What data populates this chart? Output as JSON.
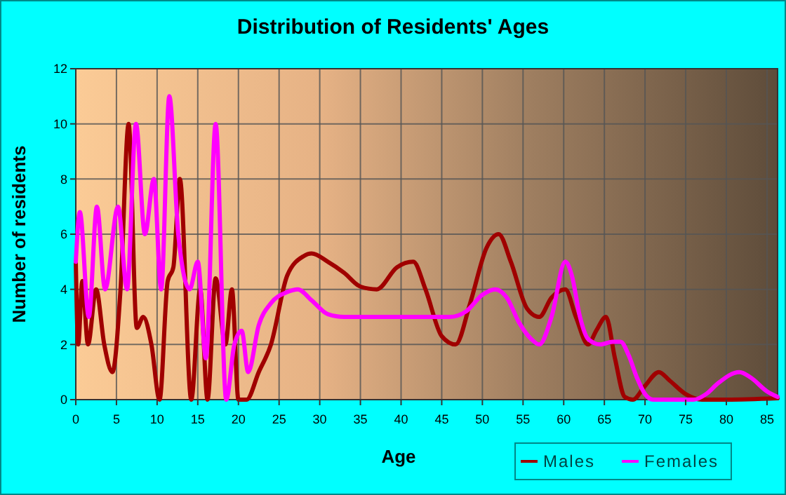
{
  "chart_data": {
    "type": "line",
    "title": "Distribution of Residents' Ages",
    "xlabel": "Age",
    "ylabel": "Number of residents",
    "xlim": [
      0,
      86.3
    ],
    "xticks": [
      0,
      5,
      10,
      15,
      20,
      25,
      30,
      35,
      40,
      45,
      50,
      55,
      60,
      65,
      70,
      75,
      80,
      85
    ],
    "ylim": [
      0,
      12
    ],
    "yticks": [
      0,
      2,
      4,
      6,
      8,
      10,
      12
    ],
    "grid": true,
    "legend": "bottom right",
    "marker": "none",
    "line_style": "solid",
    "series": [
      {
        "name": "Males",
        "color": "#a00000",
        "x": [
          0,
          0.3,
          0.8,
          1.5,
          2.5,
          3.5,
          4.5,
          5.5,
          6.5,
          7.5,
          8.3,
          9.3,
          10.3,
          11.3,
          12,
          12.8,
          14.2,
          15.3,
          16.2,
          17.2,
          18.4,
          19.2,
          20,
          21,
          22.5,
          24,
          26,
          28,
          29,
          31,
          33,
          35,
          37,
          39.5,
          41.5,
          43,
          45,
          46.7,
          48.5,
          50.5,
          52,
          53.5,
          55.5,
          57,
          58.5,
          60.2,
          61.5,
          63,
          64,
          65.2,
          66.3,
          67.5,
          68.5,
          70,
          71.7,
          73,
          75,
          77,
          80,
          86.3
        ],
        "values": [
          5,
          2,
          4.3,
          2,
          4,
          2,
          1,
          4,
          10,
          2.6,
          3,
          2,
          0,
          4.3,
          4.8,
          8,
          0,
          4,
          0,
          4.4,
          2,
          4,
          0,
          0,
          1,
          2,
          4.5,
          5.2,
          5.3,
          5,
          4.6,
          4.1,
          4,
          4.8,
          5,
          4,
          2.3,
          2,
          3.5,
          5.5,
          6,
          5,
          3.3,
          3,
          3.7,
          4,
          3,
          2,
          2.5,
          3,
          1.5,
          0.1,
          0,
          0.5,
          1,
          0.7,
          0.2,
          0,
          0,
          0.05
        ]
      },
      {
        "name": "Females",
        "color": "#ff00ff",
        "x": [
          0,
          0.5,
          1.6,
          2.6,
          3.6,
          5.2,
          6.3,
          7.4,
          8.5,
          9.6,
          10.5,
          11.5,
          12.6,
          14,
          15,
          16,
          17.2,
          18.5,
          19.5,
          20.4,
          21.2,
          22.5,
          24,
          26,
          27.3,
          29,
          31,
          33,
          36,
          40,
          44,
          46,
          48,
          50,
          51.6,
          53,
          54.5,
          56,
          57,
          58.5,
          60.2,
          61,
          62,
          63,
          64.5,
          66,
          67,
          68,
          69,
          70,
          71,
          76,
          77.5,
          79,
          81.6,
          83,
          85,
          86.3
        ],
        "values": [
          5,
          6.8,
          3,
          7,
          4,
          7,
          4,
          10,
          6,
          8,
          4,
          11,
          6,
          4,
          5,
          1.5,
          10,
          0,
          2,
          2.5,
          1,
          2.7,
          3.5,
          3.9,
          4,
          3.6,
          3.1,
          3,
          3,
          3,
          3,
          3,
          3.2,
          3.8,
          4,
          3.7,
          2.8,
          2.2,
          2,
          3,
          5,
          4.5,
          3,
          2.2,
          2,
          2.1,
          2.1,
          1.6,
          0.8,
          0.2,
          0,
          0,
          0.2,
          0.6,
          1,
          0.8,
          0.3,
          0.1
        ]
      }
    ]
  }
}
